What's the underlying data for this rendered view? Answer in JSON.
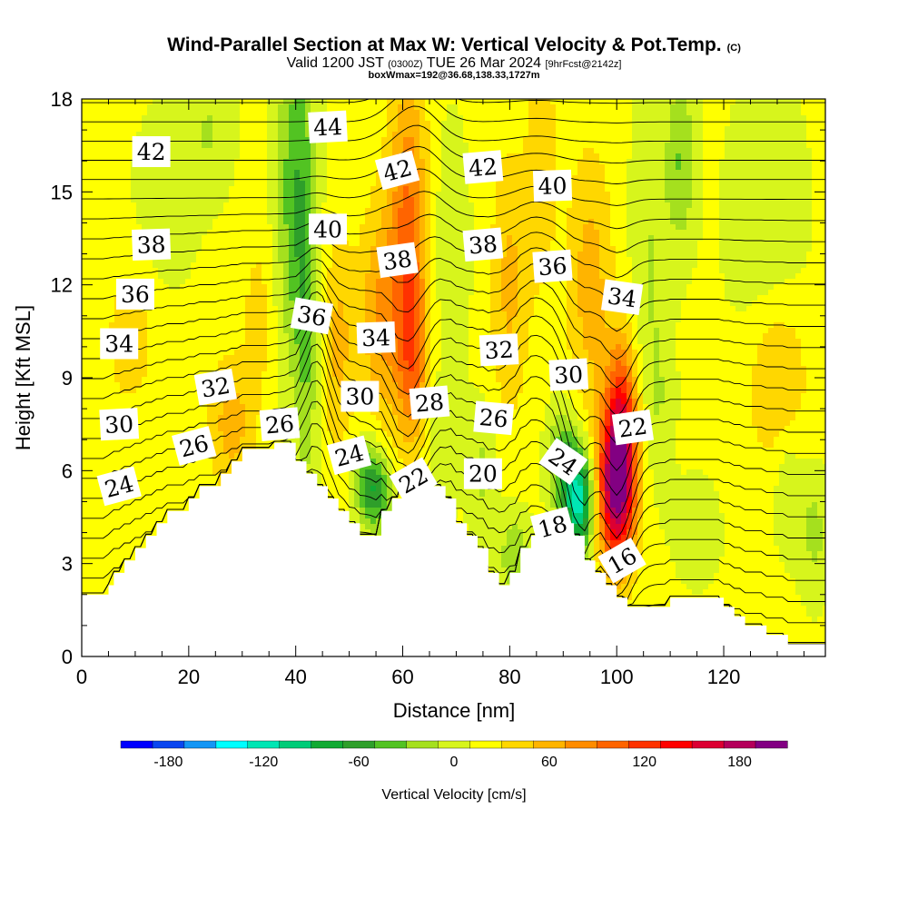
{
  "title": "Wind-Parallel Section at Max W: Vertical Velocity & Pot.Temp.",
  "copyright_mark": "(C)",
  "subtitle_main": "Valid 1200 JST",
  "subtitle_utc": "(0300Z)",
  "subtitle_date": "TUE 26 Mar 2024",
  "subtitle_fcst": "[9hrFcst@2142z]",
  "subtitle2": "boxWmax=192@36.68,138.33,1727m",
  "chart_data": {
    "type": "heatmap",
    "xlabel": "Distance [nm]",
    "ylabel": "Height [Kft MSL]",
    "xlim": [
      0,
      139
    ],
    "ylim": [
      0,
      18
    ],
    "x_ticks": [
      0,
      20,
      40,
      60,
      80,
      100,
      120
    ],
    "y_ticks": [
      0,
      3,
      6,
      9,
      12,
      15,
      18
    ],
    "colorbar": {
      "label": "Vertical Velocity [cm/s]",
      "tick_labels": [
        "-180",
        "-120",
        "-60",
        "0",
        "60",
        "120",
        "180"
      ],
      "tick_values": [
        -180,
        -120,
        -60,
        0,
        60,
        120,
        180
      ],
      "min": -210,
      "step": 20,
      "colors": [
        "#0000ff",
        "#0a46f0",
        "#1496f5",
        "#00ffff",
        "#00e6b4",
        "#00cc78",
        "#11aa33",
        "#2e9f2a",
        "#52c322",
        "#a5e01e",
        "#d7f51c",
        "#ffff00",
        "#ffd700",
        "#ffb400",
        "#ff8c00",
        "#ff6400",
        "#ff3200",
        "#ff0000",
        "#dc0032",
        "#b4005a",
        "#820082"
      ]
    },
    "terrain_kft": [
      [
        0,
        2.0
      ],
      [
        5,
        2.0
      ],
      [
        5,
        2.3
      ],
      [
        6,
        2.3
      ],
      [
        6,
        2.7
      ],
      [
        8,
        2.7
      ],
      [
        8,
        3.1
      ],
      [
        10,
        3.1
      ],
      [
        10,
        3.5
      ],
      [
        12,
        3.5
      ],
      [
        12,
        3.9
      ],
      [
        14,
        3.9
      ],
      [
        14,
        4.3
      ],
      [
        16,
        4.3
      ],
      [
        16,
        4.7
      ],
      [
        20,
        4.7
      ],
      [
        20,
        5.1
      ],
      [
        22,
        5.1
      ],
      [
        22,
        5.5
      ],
      [
        26,
        5.5
      ],
      [
        26,
        5.9
      ],
      [
        28,
        5.9
      ],
      [
        28,
        6.3
      ],
      [
        30,
        6.3
      ],
      [
        30,
        6.7
      ],
      [
        36,
        6.7
      ],
      [
        36,
        6.9
      ],
      [
        40,
        6.9
      ],
      [
        40,
        6.3
      ],
      [
        42,
        6.3
      ],
      [
        42,
        5.9
      ],
      [
        44,
        5.9
      ],
      [
        44,
        5.5
      ],
      [
        46,
        5.5
      ],
      [
        46,
        5.1
      ],
      [
        48,
        5.1
      ],
      [
        48,
        4.7
      ],
      [
        50,
        4.7
      ],
      [
        50,
        4.3
      ],
      [
        52,
        4.3
      ],
      [
        52,
        3.9
      ],
      [
        56,
        3.9
      ],
      [
        56,
        4.7
      ],
      [
        58,
        4.7
      ],
      [
        58,
        5.1
      ],
      [
        60,
        5.1
      ],
      [
        60,
        5.9
      ],
      [
        64,
        5.9
      ],
      [
        64,
        5.5
      ],
      [
        68,
        5.5
      ],
      [
        68,
        5.1
      ],
      [
        70,
        5.1
      ],
      [
        70,
        4.3
      ],
      [
        72,
        4.3
      ],
      [
        72,
        3.9
      ],
      [
        74,
        3.9
      ],
      [
        74,
        3.5
      ],
      [
        76,
        3.5
      ],
      [
        76,
        2.7
      ],
      [
        78,
        2.7
      ],
      [
        78,
        2.3
      ],
      [
        80,
        2.3
      ],
      [
        80,
        2.7
      ],
      [
        82,
        2.7
      ],
      [
        82,
        3.5
      ],
      [
        84,
        3.5
      ],
      [
        84,
        3.9
      ],
      [
        88,
        3.9
      ],
      [
        88,
        4.3
      ],
      [
        92,
        4.3
      ],
      [
        92,
        3.9
      ],
      [
        94,
        3.9
      ],
      [
        94,
        3.1
      ],
      [
        96,
        3.1
      ],
      [
        96,
        2.7
      ],
      [
        98,
        2.7
      ],
      [
        98,
        2.3
      ],
      [
        100,
        2.3
      ],
      [
        100,
        1.9
      ],
      [
        102,
        1.9
      ],
      [
        102,
        1.6
      ],
      [
        110,
        1.6
      ],
      [
        110,
        1.9
      ],
      [
        120,
        1.9
      ],
      [
        120,
        1.6
      ],
      [
        122,
        1.6
      ],
      [
        122,
        1.3
      ],
      [
        124,
        1.3
      ],
      [
        124,
        1.0
      ],
      [
        128,
        1.0
      ],
      [
        128,
        0.7
      ],
      [
        132,
        0.7
      ],
      [
        132,
        0.4
      ],
      [
        138,
        0.4
      ]
    ],
    "velocity_features": [
      {
        "x": 9,
        "y": 10.3,
        "sx": 3,
        "sy": 1.6,
        "w": 30
      },
      {
        "x": 28,
        "y": 7.5,
        "sx": 3,
        "sy": 1.5,
        "w": 45
      },
      {
        "x": 33,
        "y": 11,
        "sx": 2,
        "sy": 1.8,
        "w": 25
      },
      {
        "x": 40,
        "y": 15,
        "sx": 2.5,
        "sy": 4,
        "w": -60
      },
      {
        "x": 42,
        "y": 10,
        "sx": 1.5,
        "sy": 4,
        "w": -35
      },
      {
        "x": 48,
        "y": 10,
        "sx": 2,
        "sy": 2.5,
        "w": 40
      },
      {
        "x": 53,
        "y": 6,
        "sx": 2,
        "sy": 1,
        "w": -35
      },
      {
        "x": 56,
        "y": 11,
        "sx": 3,
        "sy": 2.5,
        "w": 55
      },
      {
        "x": 55,
        "y": 5.3,
        "sx": 2.2,
        "sy": 0.9,
        "w": -70
      },
      {
        "x": 61,
        "y": 14,
        "sx": 2.5,
        "sy": 3.5,
        "w": 75
      },
      {
        "x": 62,
        "y": 9.5,
        "sx": 2,
        "sy": 2,
        "w": 60
      },
      {
        "x": 67,
        "y": 6.5,
        "sx": 2,
        "sy": 1.5,
        "w": -25
      },
      {
        "x": 69,
        "y": 13,
        "sx": 2.5,
        "sy": 3,
        "w": -20
      },
      {
        "x": 75,
        "y": 6,
        "sx": 2,
        "sy": 1.5,
        "w": -30
      },
      {
        "x": 80,
        "y": 12,
        "sx": 2.5,
        "sy": 3,
        "w": 40
      },
      {
        "x": 81,
        "y": 3.2,
        "sx": 2,
        "sy": 1,
        "w": -45
      },
      {
        "x": 86,
        "y": 16,
        "sx": 2,
        "sy": 3,
        "w": 30
      },
      {
        "x": 93,
        "y": 5,
        "sx": 2,
        "sy": 1.2,
        "w": -130
      },
      {
        "x": 90,
        "y": 6.3,
        "sx": 2,
        "sy": 1.2,
        "w": -60
      },
      {
        "x": 95,
        "y": 12,
        "sx": 3,
        "sy": 3,
        "w": 45
      },
      {
        "x": 100,
        "y": 5.5,
        "sx": 2.5,
        "sy": 1.8,
        "w": 185
      },
      {
        "x": 101,
        "y": 8,
        "sx": 2,
        "sy": 1.8,
        "w": 80
      },
      {
        "x": 108,
        "y": 8,
        "sx": 2,
        "sy": 2,
        "w": -20
      },
      {
        "x": 106,
        "y": 13,
        "sx": 2.5,
        "sy": 3.5,
        "w": -25
      },
      {
        "x": 112,
        "y": 16,
        "sx": 2,
        "sy": 2,
        "w": -45
      },
      {
        "x": 115,
        "y": 4,
        "sx": 3,
        "sy": 1.2,
        "w": -20
      },
      {
        "x": 128,
        "y": 14,
        "sx": 5,
        "sy": 3,
        "w": -25
      },
      {
        "x": 132,
        "y": 5.5,
        "sx": 2,
        "sy": 1.5,
        "w": -25
      },
      {
        "x": 137,
        "y": 4,
        "sx": 2,
        "sy": 1.5,
        "w": -30
      },
      {
        "x": 16,
        "y": 15,
        "sx": 4,
        "sy": 2,
        "w": -20
      },
      {
        "x": 24,
        "y": 17,
        "sx": 3,
        "sy": 1.5,
        "w": -25
      },
      {
        "x": 130,
        "y": 9,
        "sx": 4,
        "sy": 2,
        "w": 40
      }
    ],
    "theta_levels": [
      14,
      15,
      16,
      17,
      18,
      19,
      20,
      21,
      22,
      23,
      24,
      25,
      26,
      27,
      28,
      29,
      30,
      31,
      32,
      33,
      34,
      35,
      36,
      37,
      38,
      39,
      40,
      41,
      42,
      43,
      44,
      45
    ],
    "theta_labels": [
      {
        "text": "42",
        "x": 13,
        "y": 16.3,
        "rot": 0
      },
      {
        "text": "44",
        "x": 46,
        "y": 17.1,
        "rot": -3
      },
      {
        "text": "42",
        "x": 59,
        "y": 15.7,
        "rot": -15
      },
      {
        "text": "42",
        "x": 75,
        "y": 15.8,
        "rot": -5
      },
      {
        "text": "40",
        "x": 88,
        "y": 15.2,
        "rot": -2
      },
      {
        "text": "40",
        "x": 46,
        "y": 13.8,
        "rot": 0
      },
      {
        "text": "38",
        "x": 13,
        "y": 13.3,
        "rot": -2
      },
      {
        "text": "38",
        "x": 59,
        "y": 12.8,
        "rot": -8
      },
      {
        "text": "38",
        "x": 75,
        "y": 13.3,
        "rot": -5
      },
      {
        "text": "36",
        "x": 88,
        "y": 12.6,
        "rot": -4
      },
      {
        "text": "36",
        "x": 10,
        "y": 11.7,
        "rot": 0
      },
      {
        "text": "34",
        "x": 101,
        "y": 11.6,
        "rot": 8
      },
      {
        "text": "36",
        "x": 43,
        "y": 11,
        "rot": 10
      },
      {
        "text": "34",
        "x": 55,
        "y": 10.3,
        "rot": -2
      },
      {
        "text": "32",
        "x": 78,
        "y": 9.9,
        "rot": -3
      },
      {
        "text": "34",
        "x": 7,
        "y": 10.1,
        "rot": 0
      },
      {
        "text": "30",
        "x": 91,
        "y": 9.1,
        "rot": -3
      },
      {
        "text": "32",
        "x": 25,
        "y": 8.7,
        "rot": -10
      },
      {
        "text": "30",
        "x": 52,
        "y": 8.4,
        "rot": 0
      },
      {
        "text": "28",
        "x": 65,
        "y": 8.2,
        "rot": -5
      },
      {
        "text": "26",
        "x": 77,
        "y": 7.7,
        "rot": 5
      },
      {
        "text": "30",
        "x": 7,
        "y": 7.5,
        "rot": -3
      },
      {
        "text": "26",
        "x": 21,
        "y": 6.8,
        "rot": -15
      },
      {
        "text": "26",
        "x": 37,
        "y": 7.5,
        "rot": -5
      },
      {
        "text": "22",
        "x": 103,
        "y": 7.4,
        "rot": -8
      },
      {
        "text": "24",
        "x": 50,
        "y": 6.5,
        "rot": -15
      },
      {
        "text": "24",
        "x": 90,
        "y": 6.3,
        "rot": 35
      },
      {
        "text": "22",
        "x": 62,
        "y": 5.7,
        "rot": -30
      },
      {
        "text": "20",
        "x": 75,
        "y": 5.9,
        "rot": 0
      },
      {
        "text": "24",
        "x": 7,
        "y": 5.5,
        "rot": -15
      },
      {
        "text": "18",
        "x": 88,
        "y": 4.2,
        "rot": -15
      },
      {
        "text": "16",
        "x": 101,
        "y": 3.1,
        "rot": -30
      }
    ]
  }
}
